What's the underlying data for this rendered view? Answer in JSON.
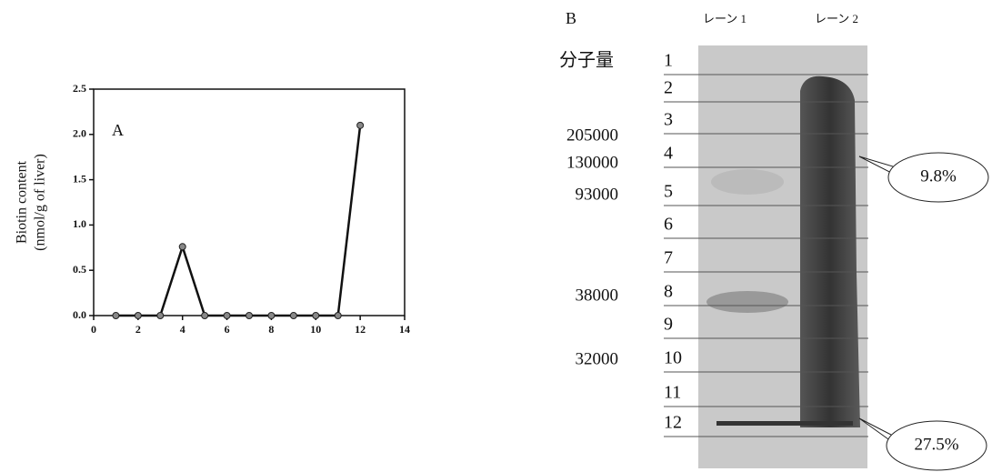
{
  "chart_data": {
    "type": "line",
    "annotation": "A",
    "ylabel": [
      "Biotin content",
      "(nmol/g of liver)"
    ],
    "x": [
      1,
      2,
      3,
      4,
      5,
      6,
      7,
      8,
      9,
      10,
      11,
      12
    ],
    "series": [
      {
        "color": "#111111",
        "values": [
          0,
          0,
          0,
          0.76,
          0,
          0,
          0,
          0,
          0,
          0,
          0,
          2.1
        ]
      }
    ],
    "xlim": [
      0,
      14
    ],
    "xticks": [
      0,
      2,
      4,
      6,
      8,
      10,
      12,
      14
    ],
    "ylim": [
      0,
      2.5
    ],
    "yticks": [
      {
        "value": 0,
        "label": "0.0"
      },
      0.5,
      {
        "value": 1,
        "label": "1.0"
      },
      1.5,
      {
        "value": 2,
        "label": "2.0"
      },
      2.5
    ]
  },
  "gel": {
    "label": "B",
    "lanes": [
      "レーン 1",
      "レーン 2"
    ],
    "mw_header": "分子量",
    "fractions": [
      1,
      2,
      3,
      4,
      5,
      6,
      7,
      8,
      9,
      10,
      11,
      12
    ],
    "markers": [
      "205000",
      "130000",
      "93000",
      "38000",
      "32000"
    ],
    "callouts": [
      "9.8%",
      "27.5%"
    ]
  }
}
